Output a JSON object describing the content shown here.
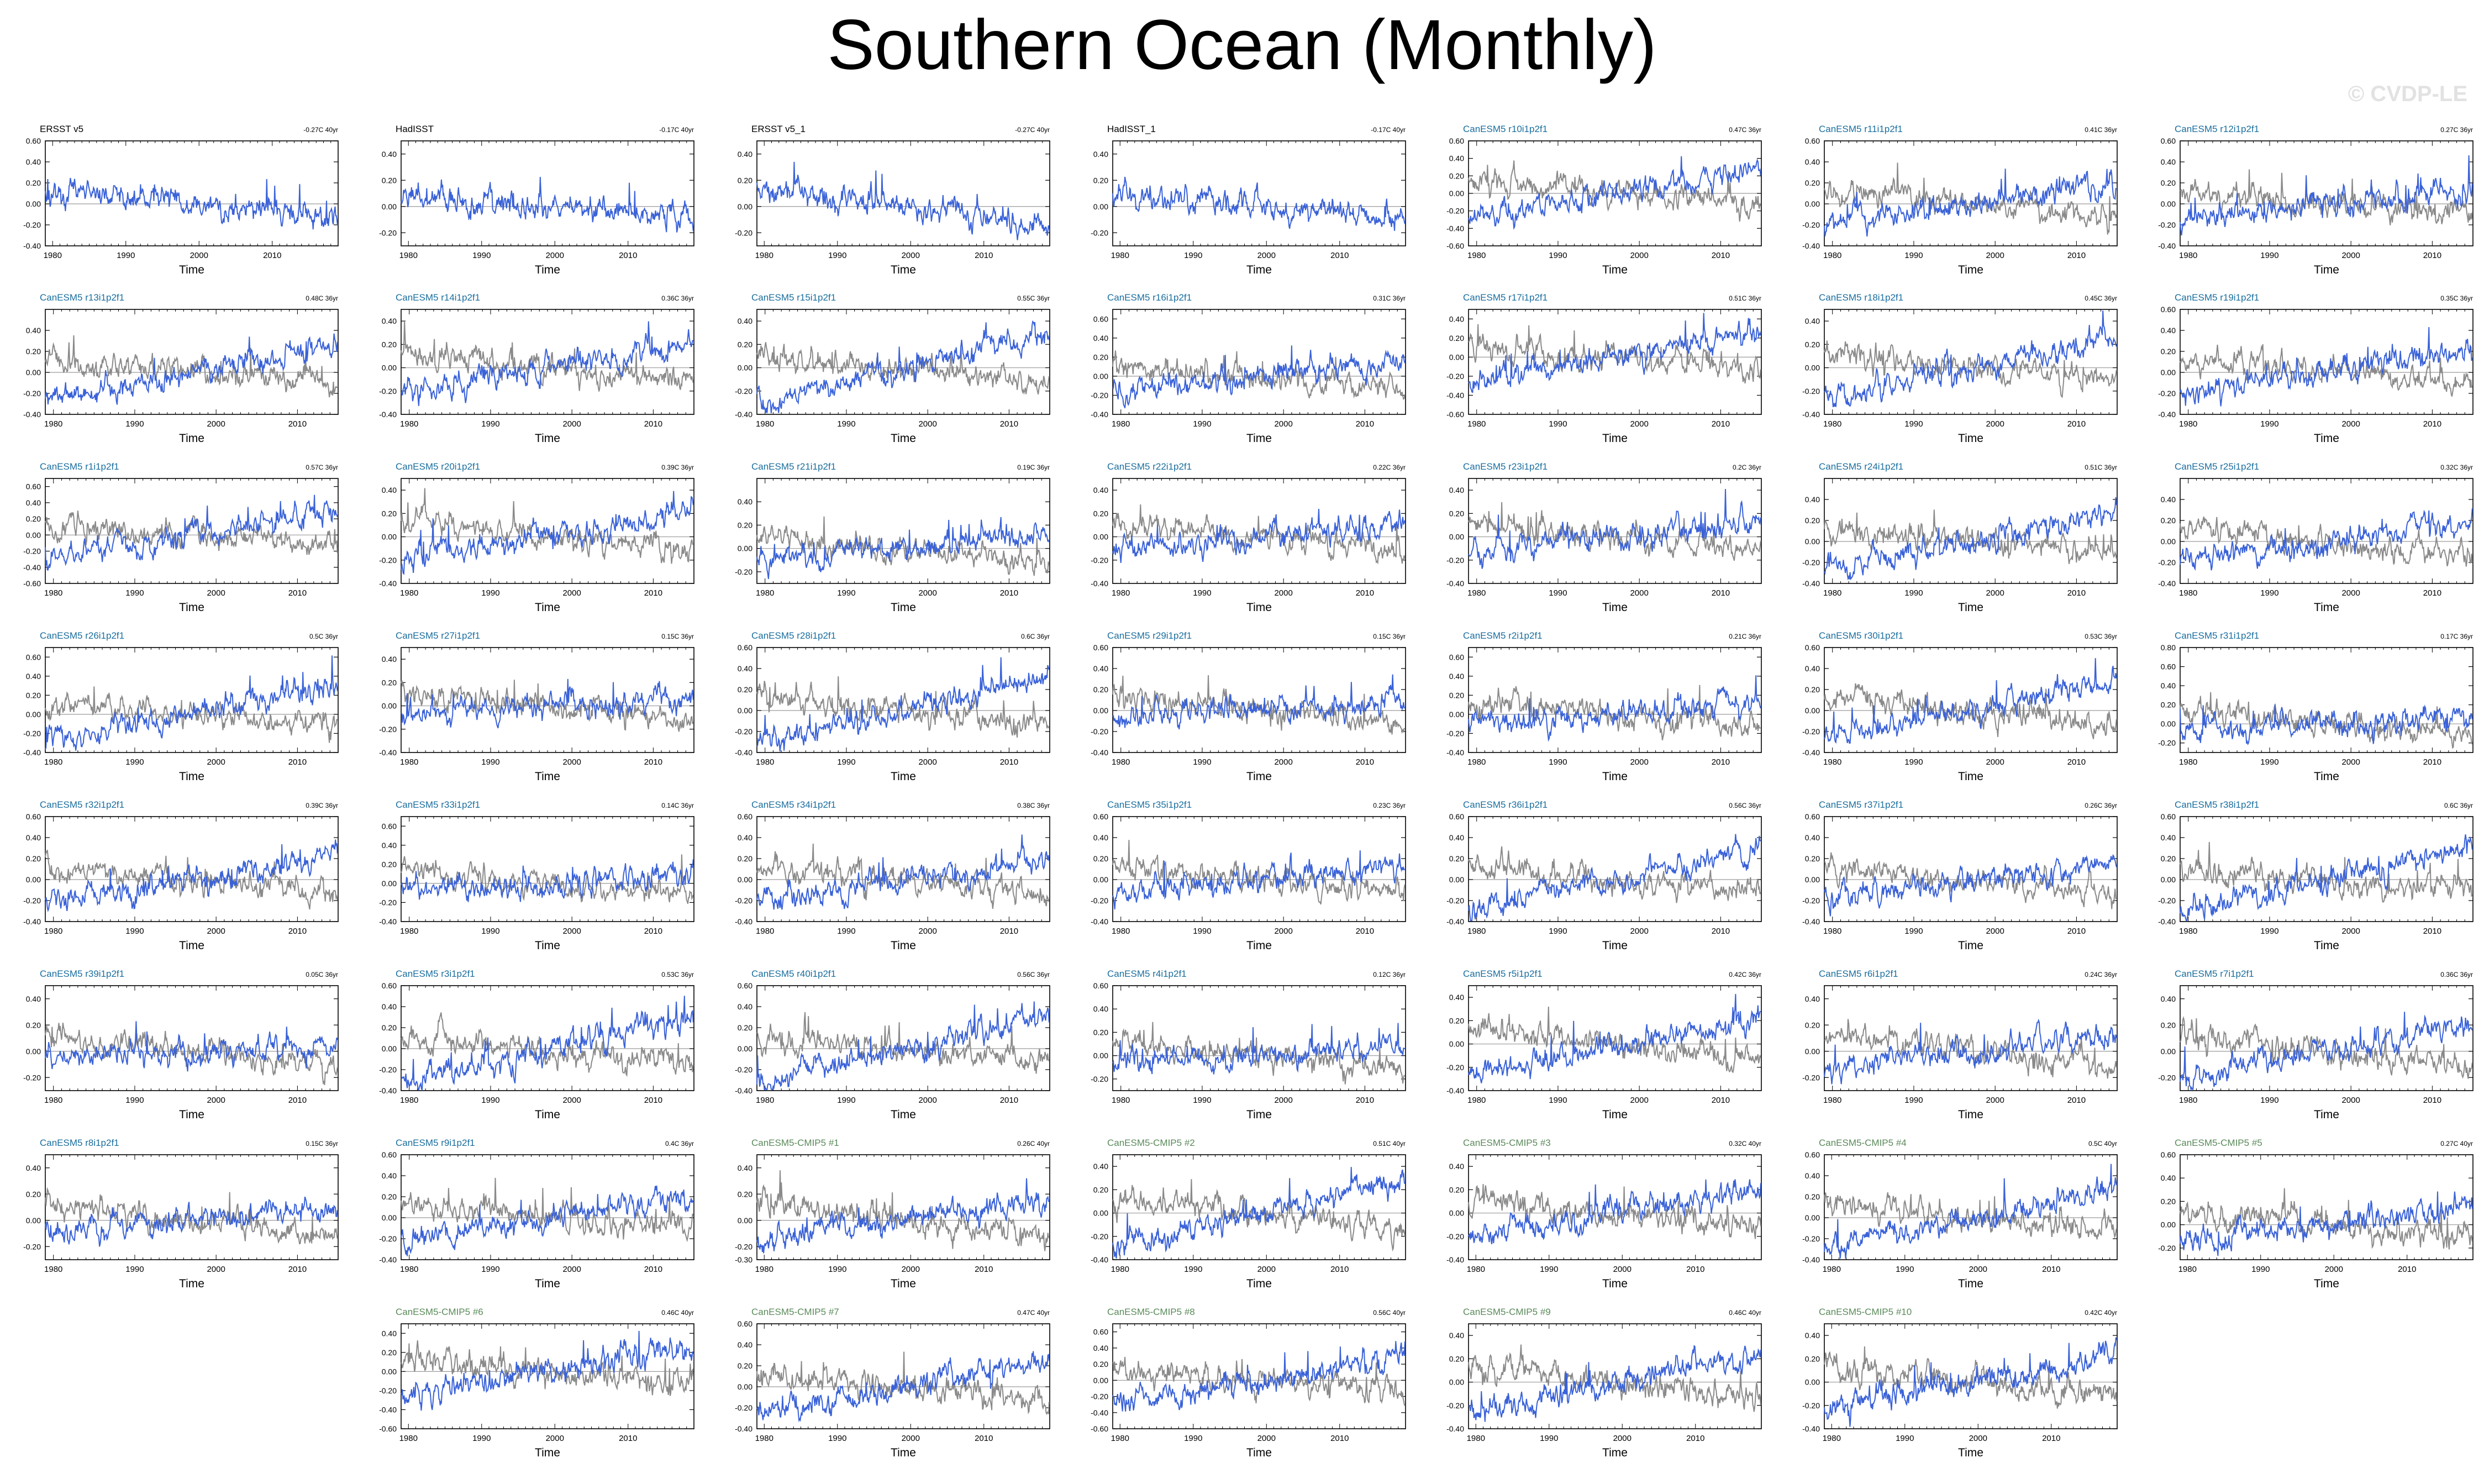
{
  "title": "Southern Ocean (Monthly)",
  "watermark": "© CVDP-LE",
  "colors": {
    "model_line": "#3a62d8",
    "obs_line": "#8a8a8a",
    "obs_title": "#000000",
    "member_title": "#1a6e9e",
    "cmip5_title": "#5a8a5a"
  },
  "chart_data": {
    "type": "line",
    "xlabel": "Time",
    "x_ticks": [
      1980,
      1990,
      2000,
      2010
    ],
    "panels": [
      {
        "title": "ERSST v5",
        "trend": "-0.27C 40yr",
        "kind": "obs",
        "yticks": [
          "0.60",
          "0.40",
          "0.20",
          "0.00",
          "-0.20",
          "-0.40"
        ],
        "ylim": [
          -0.4,
          0.6
        ],
        "xlim": [
          1979,
          2019
        ]
      },
      {
        "title": "HadISST",
        "trend": "-0.17C 40yr",
        "kind": "obs",
        "yticks": [
          "0.40",
          "0.20",
          "0.00",
          "-0.20"
        ],
        "ylim": [
          -0.3,
          0.5
        ],
        "xlim": [
          1979,
          2019
        ]
      },
      {
        "title": "ERSST v5_1",
        "trend": "-0.27C 40yr",
        "kind": "obs",
        "yticks": [
          "0.40",
          "0.20",
          "0.00",
          "-0.20"
        ],
        "ylim": [
          -0.3,
          0.5
        ],
        "xlim": [
          1979,
          2019
        ]
      },
      {
        "title": "HadISST_1",
        "trend": "-0.17C 40yr",
        "kind": "obs",
        "yticks": [
          "0.40",
          "0.20",
          "0.00",
          "-0.20"
        ],
        "ylim": [
          -0.3,
          0.5
        ],
        "xlim": [
          1979,
          2019
        ]
      },
      {
        "title": "CanESM5 r10i1p2f1",
        "trend": "0.47C 36yr",
        "kind": "member",
        "yticks": [
          "0.60",
          "0.40",
          "0.20",
          "0.00",
          "-0.20",
          "-0.40",
          "-0.60"
        ],
        "ylim": [
          -0.6,
          0.6
        ],
        "xlim": [
          1979,
          2015
        ]
      },
      {
        "title": "CanESM5 r11i1p2f1",
        "trend": "0.41C 36yr",
        "kind": "member",
        "yticks": [
          "0.60",
          "0.40",
          "0.20",
          "0.00",
          "-0.20",
          "-0.40"
        ],
        "ylim": [
          -0.4,
          0.6
        ],
        "xlim": [
          1979,
          2015
        ]
      },
      {
        "title": "CanESM5 r12i1p2f1",
        "trend": "0.27C 36yr",
        "kind": "member",
        "yticks": [
          "0.60",
          "0.40",
          "0.20",
          "0.00",
          "-0.20",
          "-0.40"
        ],
        "ylim": [
          -0.4,
          0.6
        ],
        "xlim": [
          1979,
          2015
        ]
      },
      {
        "title": "CanESM5 r13i1p2f1",
        "trend": "0.48C 36yr",
        "kind": "member",
        "yticks": [
          "0.40",
          "0.20",
          "0.00",
          "-0.20",
          "-0.40"
        ],
        "ylim": [
          -0.4,
          0.6
        ],
        "xlim": [
          1979,
          2015
        ]
      },
      {
        "title": "CanESM5 r14i1p2f1",
        "trend": "0.36C 36yr",
        "kind": "member",
        "yticks": [
          "0.40",
          "0.20",
          "0.00",
          "-0.20",
          "-0.40"
        ],
        "ylim": [
          -0.4,
          0.5
        ],
        "xlim": [
          1979,
          2015
        ]
      },
      {
        "title": "CanESM5 r15i1p2f1",
        "trend": "0.55C 36yr",
        "kind": "member",
        "yticks": [
          "0.40",
          "0.20",
          "0.00",
          "-0.20",
          "-0.40"
        ],
        "ylim": [
          -0.4,
          0.5
        ],
        "xlim": [
          1979,
          2015
        ]
      },
      {
        "title": "CanESM5 r16i1p2f1",
        "trend": "0.31C 36yr",
        "kind": "member",
        "yticks": [
          "0.60",
          "0.40",
          "0.20",
          "0.00",
          "-0.20",
          "-0.40"
        ],
        "ylim": [
          -0.4,
          0.7
        ],
        "xlim": [
          1979,
          2015
        ]
      },
      {
        "title": "CanESM5 r17i1p2f1",
        "trend": "0.51C 36yr",
        "kind": "member",
        "yticks": [
          "0.40",
          "0.20",
          "0.00",
          "-0.20",
          "-0.40",
          "-0.60"
        ],
        "ylim": [
          -0.6,
          0.5
        ],
        "xlim": [
          1979,
          2015
        ]
      },
      {
        "title": "CanESM5 r18i1p2f1",
        "trend": "0.45C 36yr",
        "kind": "member",
        "yticks": [
          "0.40",
          "0.20",
          "0.00",
          "-0.20",
          "-0.40"
        ],
        "ylim": [
          -0.4,
          0.5
        ],
        "xlim": [
          1979,
          2015
        ]
      },
      {
        "title": "CanESM5 r19i1p2f1",
        "trend": "0.35C 36yr",
        "kind": "member",
        "yticks": [
          "0.60",
          "0.40",
          "0.20",
          "0.00",
          "-0.20",
          "-0.40"
        ],
        "ylim": [
          -0.4,
          0.6
        ],
        "xlim": [
          1979,
          2015
        ]
      },
      {
        "title": "CanESM5 r1i1p2f1",
        "trend": "0.57C 36yr",
        "kind": "member",
        "yticks": [
          "0.60",
          "0.40",
          "0.20",
          "0.00",
          "-0.20",
          "-0.40",
          "-0.60"
        ],
        "ylim": [
          -0.6,
          0.7
        ],
        "xlim": [
          1979,
          2015
        ]
      },
      {
        "title": "CanESM5 r20i1p2f1",
        "trend": "0.39C 36yr",
        "kind": "member",
        "yticks": [
          "0.40",
          "0.20",
          "0.00",
          "-0.20",
          "-0.40"
        ],
        "ylim": [
          -0.4,
          0.5
        ],
        "xlim": [
          1979,
          2015
        ]
      },
      {
        "title": "CanESM5 r21i1p2f1",
        "trend": "0.19C 36yr",
        "kind": "member",
        "yticks": [
          "0.40",
          "0.20",
          "0.00",
          "-0.20"
        ],
        "ylim": [
          -0.3,
          0.6
        ],
        "xlim": [
          1979,
          2015
        ]
      },
      {
        "title": "CanESM5 r22i1p2f1",
        "trend": "0.22C 36yr",
        "kind": "member",
        "yticks": [
          "0.40",
          "0.20",
          "0.00",
          "-0.20",
          "-0.40"
        ],
        "ylim": [
          -0.4,
          0.5
        ],
        "xlim": [
          1979,
          2015
        ]
      },
      {
        "title": "CanESM5 r23i1p2f1",
        "trend": "0.2C 36yr",
        "kind": "member",
        "yticks": [
          "0.40",
          "0.20",
          "0.00",
          "-0.20",
          "-0.40"
        ],
        "ylim": [
          -0.4,
          0.5
        ],
        "xlim": [
          1979,
          2015
        ]
      },
      {
        "title": "CanESM5 r24i1p2f1",
        "trend": "0.51C 36yr",
        "kind": "member",
        "yticks": [
          "0.40",
          "0.20",
          "0.00",
          "-0.20",
          "-0.40"
        ],
        "ylim": [
          -0.4,
          0.6
        ],
        "xlim": [
          1979,
          2015
        ]
      },
      {
        "title": "CanESM5 r25i1p2f1",
        "trend": "0.32C 36yr",
        "kind": "member",
        "yticks": [
          "0.40",
          "0.20",
          "0.00",
          "-0.20",
          "-0.40"
        ],
        "ylim": [
          -0.4,
          0.6
        ],
        "xlim": [
          1979,
          2015
        ]
      },
      {
        "title": "CanESM5 r26i1p2f1",
        "trend": "0.5C 36yr",
        "kind": "member",
        "yticks": [
          "0.60",
          "0.40",
          "0.20",
          "0.00",
          "-0.20",
          "-0.40"
        ],
        "ylim": [
          -0.4,
          0.7
        ],
        "xlim": [
          1979,
          2015
        ]
      },
      {
        "title": "CanESM5 r27i1p2f1",
        "trend": "0.15C 36yr",
        "kind": "member",
        "yticks": [
          "0.40",
          "0.20",
          "0.00",
          "-0.20",
          "-0.40"
        ],
        "ylim": [
          -0.4,
          0.5
        ],
        "xlim": [
          1979,
          2015
        ]
      },
      {
        "title": "CanESM5 r28i1p2f1",
        "trend": "0.6C 36yr",
        "kind": "member",
        "yticks": [
          "0.60",
          "0.40",
          "0.20",
          "0.00",
          "-0.20",
          "-0.40"
        ],
        "ylim": [
          -0.4,
          0.6
        ],
        "xlim": [
          1979,
          2015
        ]
      },
      {
        "title": "CanESM5 r29i1p2f1",
        "trend": "0.15C 36yr",
        "kind": "member",
        "yticks": [
          "0.60",
          "0.40",
          "0.20",
          "0.00",
          "-0.20",
          "-0.40"
        ],
        "ylim": [
          -0.4,
          0.6
        ],
        "xlim": [
          1979,
          2015
        ]
      },
      {
        "title": "CanESM5 r2i1p2f1",
        "trend": "0.21C 36yr",
        "kind": "member",
        "yticks": [
          "0.60",
          "0.40",
          "0.20",
          "0.00",
          "-0.20",
          "-0.40"
        ],
        "ylim": [
          -0.4,
          0.7
        ],
        "xlim": [
          1979,
          2015
        ]
      },
      {
        "title": "CanESM5 r30i1p2f1",
        "trend": "0.53C 36yr",
        "kind": "member",
        "yticks": [
          "0.60",
          "0.40",
          "0.20",
          "0.00",
          "-0.20",
          "-0.40"
        ],
        "ylim": [
          -0.4,
          0.6
        ],
        "xlim": [
          1979,
          2015
        ]
      },
      {
        "title": "CanESM5 r31i1p2f1",
        "trend": "0.17C 36yr",
        "kind": "member",
        "yticks": [
          "0.80",
          "0.60",
          "0.40",
          "0.20",
          "0.00",
          "-0.20"
        ],
        "ylim": [
          -0.3,
          0.8
        ],
        "xlim": [
          1979,
          2015
        ]
      },
      {
        "title": "CanESM5 r32i1p2f1",
        "trend": "0.39C 36yr",
        "kind": "member",
        "yticks": [
          "0.60",
          "0.40",
          "0.20",
          "0.00",
          "-0.20",
          "-0.40"
        ],
        "ylim": [
          -0.4,
          0.6
        ],
        "xlim": [
          1979,
          2015
        ]
      },
      {
        "title": "CanESM5 r33i1p2f1",
        "trend": "0.14C 36yr",
        "kind": "member",
        "yticks": [
          "0.60",
          "0.40",
          "0.20",
          "0.00",
          "-0.20",
          "-0.40"
        ],
        "ylim": [
          -0.4,
          0.7
        ],
        "xlim": [
          1979,
          2015
        ]
      },
      {
        "title": "CanESM5 r34i1p2f1",
        "trend": "0.38C 36yr",
        "kind": "member",
        "yticks": [
          "0.60",
          "0.40",
          "0.20",
          "0.00",
          "-0.20",
          "-0.40"
        ],
        "ylim": [
          -0.4,
          0.6
        ],
        "xlim": [
          1979,
          2015
        ]
      },
      {
        "title": "CanESM5 r35i1p2f1",
        "trend": "0.23C 36yr",
        "kind": "member",
        "yticks": [
          "0.60",
          "0.40",
          "0.20",
          "0.00",
          "-0.20",
          "-0.40"
        ],
        "ylim": [
          -0.4,
          0.6
        ],
        "xlim": [
          1979,
          2015
        ]
      },
      {
        "title": "CanESM5 r36i1p2f1",
        "trend": "0.56C 36yr",
        "kind": "member",
        "yticks": [
          "0.60",
          "0.40",
          "0.20",
          "0.00",
          "-0.20",
          "-0.40"
        ],
        "ylim": [
          -0.4,
          0.6
        ],
        "xlim": [
          1979,
          2015
        ]
      },
      {
        "title": "CanESM5 r37i1p2f1",
        "trend": "0.26C 36yr",
        "kind": "member",
        "yticks": [
          "0.60",
          "0.40",
          "0.20",
          "0.00",
          "-0.20",
          "-0.40"
        ],
        "ylim": [
          -0.4,
          0.6
        ],
        "xlim": [
          1979,
          2015
        ]
      },
      {
        "title": "CanESM5 r38i1p2f1",
        "trend": "0.6C 36yr",
        "kind": "member",
        "yticks": [
          "0.60",
          "0.40",
          "0.20",
          "0.00",
          "-0.20",
          "-0.40"
        ],
        "ylim": [
          -0.4,
          0.6
        ],
        "xlim": [
          1979,
          2015
        ]
      },
      {
        "title": "CanESM5 r39i1p2f1",
        "trend": "0.05C 36yr",
        "kind": "member",
        "yticks": [
          "0.40",
          "0.20",
          "0.00",
          "-0.20"
        ],
        "ylim": [
          -0.3,
          0.5
        ],
        "xlim": [
          1979,
          2015
        ]
      },
      {
        "title": "CanESM5 r3i1p2f1",
        "trend": "0.53C 36yr",
        "kind": "member",
        "yticks": [
          "0.60",
          "0.40",
          "0.20",
          "0.00",
          "-0.20",
          "-0.40"
        ],
        "ylim": [
          -0.4,
          0.6
        ],
        "xlim": [
          1979,
          2015
        ]
      },
      {
        "title": "CanESM5 r40i1p2f1",
        "trend": "0.56C 36yr",
        "kind": "member",
        "yticks": [
          "0.60",
          "0.40",
          "0.20",
          "0.00",
          "-0.20",
          "-0.40"
        ],
        "ylim": [
          -0.4,
          0.6
        ],
        "xlim": [
          1979,
          2015
        ]
      },
      {
        "title": "CanESM5 r4i1p2f1",
        "trend": "0.12C 36yr",
        "kind": "member",
        "yticks": [
          "0.60",
          "0.40",
          "0.20",
          "0.00",
          "-0.20"
        ],
        "ylim": [
          -0.3,
          0.6
        ],
        "xlim": [
          1979,
          2015
        ]
      },
      {
        "title": "CanESM5 r5i1p2f1",
        "trend": "0.42C 36yr",
        "kind": "member",
        "yticks": [
          "0.40",
          "0.20",
          "0.00",
          "-0.20",
          "-0.40"
        ],
        "ylim": [
          -0.4,
          0.5
        ],
        "xlim": [
          1979,
          2015
        ]
      },
      {
        "title": "CanESM5 r6i1p2f1",
        "trend": "0.24C 36yr",
        "kind": "member",
        "yticks": [
          "0.40",
          "0.20",
          "0.00",
          "-0.20"
        ],
        "ylim": [
          -0.3,
          0.5
        ],
        "xlim": [
          1979,
          2015
        ]
      },
      {
        "title": "CanESM5 r7i1p2f1",
        "trend": "0.36C 36yr",
        "kind": "member",
        "yticks": [
          "0.40",
          "0.20",
          "0.00",
          "-0.20"
        ],
        "ylim": [
          -0.3,
          0.5
        ],
        "xlim": [
          1979,
          2015
        ]
      },
      {
        "title": "CanESM5 r8i1p2f1",
        "trend": "0.15C 36yr",
        "kind": "member",
        "yticks": [
          "0.40",
          "0.20",
          "0.00",
          "-0.20"
        ],
        "ylim": [
          -0.3,
          0.5
        ],
        "xlim": [
          1979,
          2015
        ]
      },
      {
        "title": "CanESM5 r9i1p2f1",
        "trend": "0.4C 36yr",
        "kind": "member",
        "yticks": [
          "0.60",
          "0.40",
          "0.20",
          "0.00",
          "-0.20",
          "-0.40"
        ],
        "ylim": [
          -0.4,
          0.6
        ],
        "xlim": [
          1979,
          2015
        ]
      },
      {
        "title": "CanESM5-CMIP5 #1",
        "trend": "0.26C 40yr",
        "kind": "cmip5",
        "yticks": [
          "0.40",
          "0.20",
          "0.00",
          "-0.20",
          "-0.30"
        ],
        "ylim": [
          -0.3,
          0.5
        ],
        "xlim": [
          1979,
          2019
        ]
      },
      {
        "title": "CanESM5-CMIP5 #2",
        "trend": "0.51C 40yr",
        "kind": "cmip5",
        "yticks": [
          "0.40",
          "0.20",
          "0.00",
          "-0.20",
          "-0.40"
        ],
        "ylim": [
          -0.4,
          0.5
        ],
        "xlim": [
          1979,
          2019
        ]
      },
      {
        "title": "CanESM5-CMIP5 #3",
        "trend": "0.32C 40yr",
        "kind": "cmip5",
        "yticks": [
          "0.40",
          "0.20",
          "0.00",
          "-0.20",
          "-0.40"
        ],
        "ylim": [
          -0.4,
          0.5
        ],
        "xlim": [
          1979,
          2019
        ]
      },
      {
        "title": "CanESM5-CMIP5 #4",
        "trend": "0.5C 40yr",
        "kind": "cmip5",
        "yticks": [
          "0.60",
          "0.40",
          "0.20",
          "0.00",
          "-0.20",
          "-0.40"
        ],
        "ylim": [
          -0.4,
          0.6
        ],
        "xlim": [
          1979,
          2019
        ]
      },
      {
        "title": "CanESM5-CMIP5 #5",
        "trend": "0.27C 40yr",
        "kind": "cmip5",
        "yticks": [
          "0.60",
          "0.40",
          "0.20",
          "0.00",
          "-0.20"
        ],
        "ylim": [
          -0.3,
          0.6
        ],
        "xlim": [
          1979,
          2019
        ]
      },
      {
        "title": "CanESM5-CMIP5 #6",
        "trend": "0.46C 40yr",
        "kind": "cmip5",
        "yticks": [
          "0.40",
          "0.20",
          "0.00",
          "-0.20",
          "-0.40",
          "-0.60"
        ],
        "ylim": [
          -0.6,
          0.5
        ],
        "xlim": [
          1979,
          2019
        ]
      },
      {
        "title": "CanESM5-CMIP5 #7",
        "trend": "0.47C 40yr",
        "kind": "cmip5",
        "yticks": [
          "0.60",
          "0.40",
          "0.20",
          "0.00",
          "-0.20",
          "-0.40"
        ],
        "ylim": [
          -0.4,
          0.6
        ],
        "xlim": [
          1979,
          2019
        ]
      },
      {
        "title": "CanESM5-CMIP5 #8",
        "trend": "0.56C 40yr",
        "kind": "cmip5",
        "yticks": [
          "0.60",
          "0.40",
          "0.20",
          "0.00",
          "-0.20",
          "-0.40",
          "-0.60"
        ],
        "ylim": [
          -0.6,
          0.7
        ],
        "xlim": [
          1979,
          2019
        ]
      },
      {
        "title": "CanESM5-CMIP5 #9",
        "trend": "0.46C 40yr",
        "kind": "cmip5",
        "yticks": [
          "0.40",
          "0.20",
          "0.00",
          "-0.20",
          "-0.40"
        ],
        "ylim": [
          -0.4,
          0.5
        ],
        "xlim": [
          1979,
          2019
        ]
      },
      {
        "title": "CanESM5-CMIP5 #10",
        "trend": "0.42C 40yr",
        "kind": "cmip5",
        "yticks": [
          "0.40",
          "0.20",
          "0.00",
          "-0.20",
          "-0.40"
        ],
        "ylim": [
          -0.4,
          0.5
        ],
        "xlim": [
          1979,
          2019
        ]
      }
    ]
  }
}
